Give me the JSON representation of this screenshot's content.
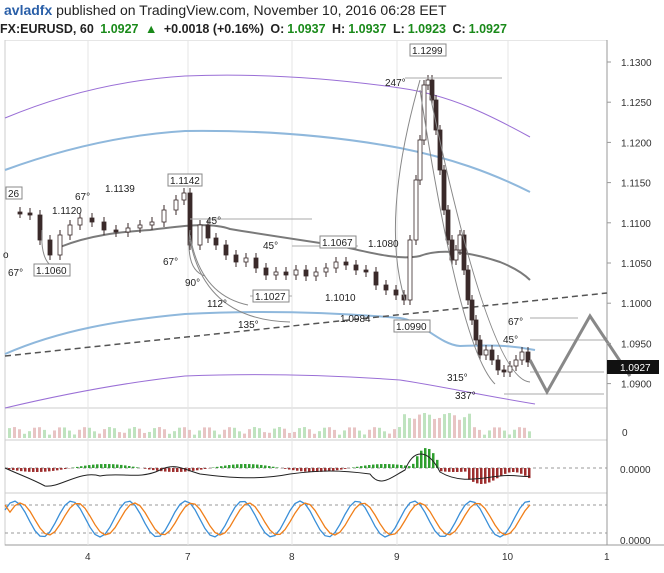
{
  "header": {
    "user": "avladfx",
    "published_text": " published on TradingView.com, November 10, 2016 06:28 EET",
    "symbol": "FX:EURUSD, 60",
    "last": "1.0927",
    "change": "+0.0018 (+0.16%)",
    "o_label": "O:",
    "o_value": "1.0937",
    "h_label": "H:",
    "h_value": "1.0937",
    "l_label": "L:",
    "l_value": "1.0923",
    "c_label": "C:",
    "c_value": "1.0927"
  },
  "price_axis": {
    "ticks": [
      "1.1300",
      "1.1250",
      "1.1200",
      "1.1150",
      "1.1100",
      "1.1050",
      "1.1000",
      "1.0950",
      "1.0900"
    ],
    "last_price_label": "1.0927",
    "volume_tick": "0",
    "macd_tick": "0.0000",
    "stoch_tick": "0.0000"
  },
  "time_axis": [
    "4",
    "7",
    "8",
    "9",
    "10",
    "1"
  ],
  "annotations": {
    "price_labels": [
      "26",
      "1.1139",
      "1.1142",
      "1.1120",
      "1.1060",
      "1.1067",
      "1.1080",
      "1.1027",
      "1.1010",
      "1.0984",
      "1.0990",
      "1.1299"
    ],
    "angles": [
      "67°",
      "67°",
      "45°",
      "45°",
      "67°",
      "90°",
      "112°",
      "135°",
      "247°",
      "67°",
      "45°",
      "315°",
      "337°"
    ],
    "misc": "o"
  },
  "colors": {
    "bull": "#ffffff",
    "bear": "#3a2a2a",
    "blue_band": "#8fb8dc",
    "purple_band": "#9a6fd6",
    "grey_ma": "#7a7a7a",
    "macd_up": "#2e9e2e",
    "macd_down": "#9e2e2e",
    "stoch_k": "#3a8fd8",
    "stoch_d": "#f07f1a",
    "arrow_up": "#1a8a1a"
  }
}
